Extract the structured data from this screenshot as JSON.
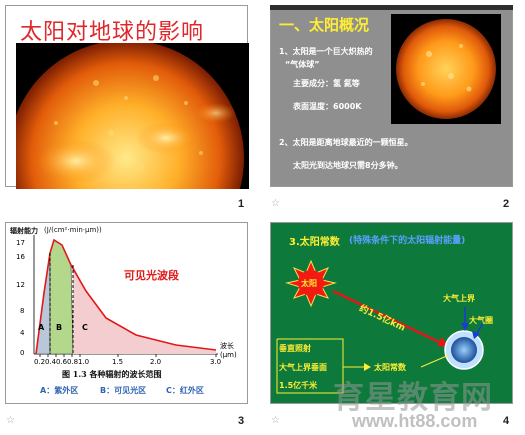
{
  "slides": [
    {
      "number": "1",
      "title": "太阳对地球的影响"
    },
    {
      "number": "2",
      "heading": "一、太阳概况",
      "line1a": "1、太阳是一个巨大炽热的",
      "line1b": "“气体球”",
      "comp_label": "主要成分：氢 氦等",
      "temp_label": "表面温度：6000K",
      "line2": "2、太阳是距离地球最近的一颗恒星。",
      "line3": "太阳光到达地球只需8分多钟。"
    },
    {
      "number": "3",
      "ylabel": "辐射能力",
      "yunit": "(J/(cm²·min·μm))",
      "yticks": [
        "17",
        "16",
        "12",
        "8",
        "4",
        "0"
      ],
      "xticks": [
        "0.2",
        "0.4",
        "0.6",
        "0.8",
        "1.0",
        "1.5",
        "2.0",
        "3.0"
      ],
      "xlabel_a": "波长",
      "xlabel_b": "(μm)",
      "region_a": "A",
      "region_b": "B",
      "region_c": "C",
      "annotation": "可见光波段",
      "caption": "图 1.3  各种辐射的波长范围",
      "legend_a": "A：紫外区",
      "legend_b": "B：可见光区",
      "legend_c": "C：红外区"
    },
    {
      "number": "4",
      "heading_main": "3.太阳常数",
      "heading_sub": "(特殊条件下的太阳辐射能量)",
      "sun_label": "太阳",
      "distance": "约1.5亿km",
      "upper_atm": "大气上界",
      "atmosphere": "大气圈",
      "cond1": "垂直照射",
      "cond2": "大气上界垂面",
      "cond3": "1.5亿千米",
      "const_label": "太阳常数"
    }
  ],
  "watermark": {
    "line1": "育星教育网",
    "line2": "www.ht88.com"
  },
  "colors": {
    "title_red": "#e0282a",
    "slide2_bg": "#8f8f8f",
    "slide4_bg": "#0d7a3c",
    "yellow": "#ffee33"
  }
}
